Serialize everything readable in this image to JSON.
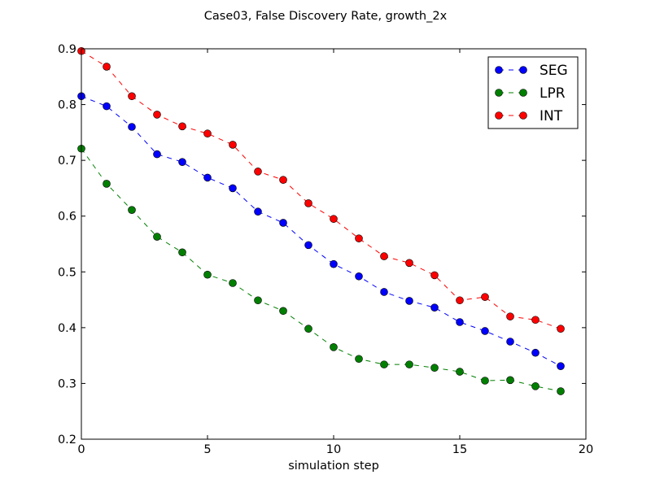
{
  "chart_data": {
    "type": "line",
    "title": "Case03, False Discovery Rate, growth_2x",
    "xlabel": "simulation step",
    "ylabel": "",
    "xlim": [
      0,
      20
    ],
    "ylim": [
      0.2,
      0.9
    ],
    "xticks": [
      0,
      5,
      10,
      15,
      20
    ],
    "xtick_labels": [
      "0",
      "5",
      "10",
      "15",
      "20"
    ],
    "yticks": [
      0.2,
      0.3,
      0.4,
      0.5,
      0.6,
      0.7,
      0.8,
      0.9
    ],
    "ytick_labels": [
      "0.2",
      "0.3",
      "0.4",
      "0.5",
      "0.6",
      "0.7",
      "0.8",
      "0.9"
    ],
    "grid": false,
    "legend_position": "top-right",
    "x": [
      0,
      1,
      2,
      3,
      4,
      5,
      6,
      7,
      8,
      9,
      10,
      11,
      12,
      13,
      14,
      15,
      16,
      17,
      18,
      19
    ],
    "series": [
      {
        "name": "SEG",
        "color": "#0000ff",
        "values": [
          0.815,
          0.797,
          0.76,
          0.711,
          0.697,
          0.669,
          0.65,
          0.608,
          0.588,
          0.548,
          0.514,
          0.492,
          0.464,
          0.448,
          0.436,
          0.41,
          0.394,
          0.375,
          0.355,
          0.331
        ]
      },
      {
        "name": "LPR",
        "color": "#007f00",
        "values": [
          0.721,
          0.658,
          0.611,
          0.563,
          0.535,
          0.495,
          0.48,
          0.449,
          0.43,
          0.398,
          0.365,
          0.344,
          0.334,
          0.334,
          0.328,
          0.321,
          0.305,
          0.306,
          0.295,
          0.286
        ]
      },
      {
        "name": "INT",
        "color": "#ff0000",
        "values": [
          0.896,
          0.868,
          0.815,
          0.782,
          0.761,
          0.748,
          0.728,
          0.68,
          0.665,
          0.623,
          0.595,
          0.56,
          0.528,
          0.516,
          0.494,
          0.449,
          0.455,
          0.42,
          0.414,
          0.398
        ]
      }
    ]
  }
}
